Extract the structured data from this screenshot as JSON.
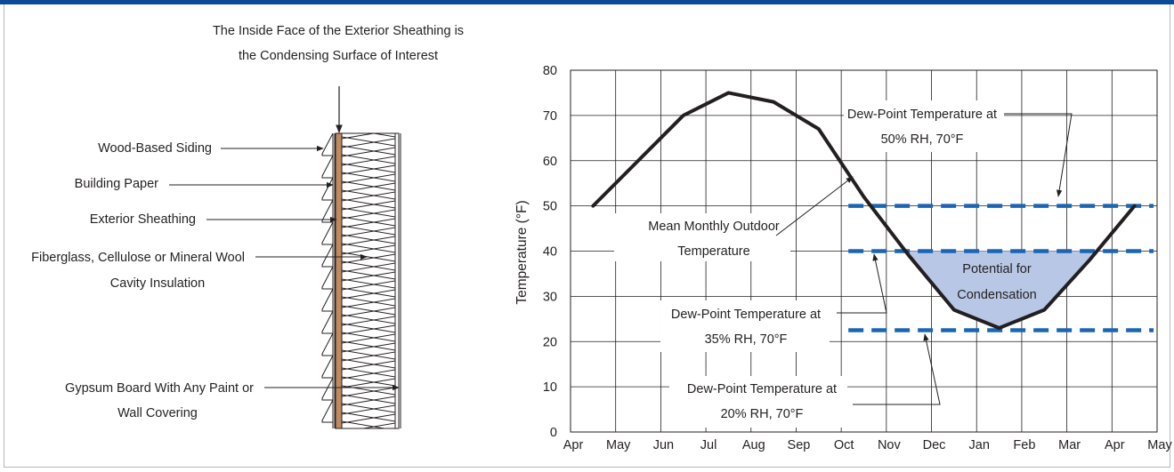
{
  "wall_diagram": {
    "title_line1": "The Inside Face of the Exterior Sheathing is",
    "title_line2": "the Condensing Surface of Interest",
    "labels": {
      "siding": "Wood-Based Siding",
      "paper": "Building Paper",
      "sheathing": "Exterior Sheathing",
      "insulation_line1": "Fiberglass, Cellulose or Mineral Wool",
      "insulation_line2": "Cavity Insulation",
      "gypsum_line1": "Gypsum Board With Any Paint or",
      "gypsum_line2": "Wall Covering"
    },
    "colors": {
      "sheathing": "#c08a5e"
    }
  },
  "chart_data": {
    "type": "line",
    "ylabel": "Temperature (°F)",
    "xlabel": "",
    "ylim": [
      0,
      80
    ],
    "yticks": [
      0,
      10,
      20,
      30,
      40,
      50,
      60,
      70,
      80
    ],
    "xticks": [
      "Apr",
      "May",
      "Jun",
      "Jul",
      "Aug",
      "Sep",
      "Oct",
      "Nov",
      "Dec",
      "Jan",
      "Feb",
      "Mar",
      "Apr",
      "May"
    ],
    "grid": true,
    "series": [
      {
        "name": "Mean Monthly Outdoor Temperature",
        "color": "#231f20",
        "x": [
          "mid-Apr",
          "mid-May",
          "mid-Jun",
          "mid-Jul",
          "mid-Aug",
          "mid-Sep",
          "mid-Oct",
          "mid-Nov",
          "mid-Dec",
          "mid-Jan",
          "mid-Feb",
          "mid-Mar",
          "mid-Apr"
        ],
        "values": [
          50,
          60,
          70,
          75,
          73,
          67,
          52,
          39,
          27,
          23,
          27,
          38,
          50
        ]
      }
    ],
    "reference_lines": [
      {
        "value": 50,
        "from": "Oct",
        "to": "Apr",
        "color": "#1a66b3"
      },
      {
        "value": 40,
        "from": "Oct",
        "to": "Apr",
        "color": "#1a66b3"
      },
      {
        "value": 22.5,
        "from": "Oct",
        "to": "Apr",
        "color": "#1a66b3"
      }
    ],
    "shaded_region": {
      "below": 40,
      "fill": "#b8c7e6"
    },
    "annotations": {
      "mean_line1": "Mean Monthly Outdoor",
      "mean_line2": "Temperature",
      "dp50_line1": "Dew-Point Temperature at",
      "dp50_line2": "50% RH, 70°F",
      "dp35_line1": "Dew-Point Temperature at",
      "dp35_line2": "35% RH, 70°F",
      "dp20_line1": "Dew-Point Temperature at",
      "dp20_line2": "20% RH, 70°F",
      "potential_line1": "Potential for",
      "potential_line2": "Condensation"
    }
  }
}
